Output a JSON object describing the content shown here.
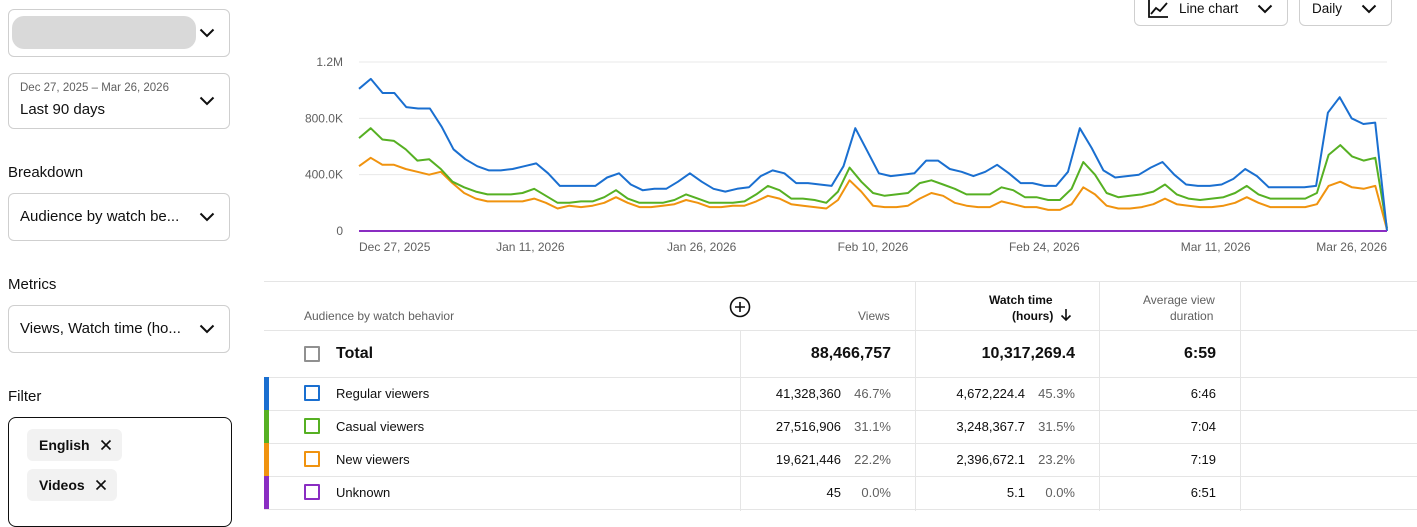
{
  "colors": {
    "regular": "#1a6fd0",
    "casual": "#56b023",
    "new": "#f0930f",
    "unknown": "#8a2dc2"
  },
  "left": {
    "channel_select": {
      "value": ""
    },
    "date_range": {
      "range": "Dec 27, 2025 – Mar 26, 2026",
      "label": "Last 90 days"
    },
    "breakdown": {
      "label": "Breakdown",
      "value": "Audience by watch be..."
    },
    "metrics": {
      "label": "Metrics",
      "value": "Views, Watch time (ho..."
    },
    "filter": {
      "label": "Filter",
      "chips": [
        "English",
        "Videos"
      ]
    }
  },
  "top_controls": {
    "chart_type": "Line chart",
    "interval": "Daily"
  },
  "chart_data": {
    "type": "line",
    "y_ticks": [
      "1.2M",
      "800.0K",
      "400.0K",
      "0"
    ],
    "ylim": [
      0,
      1200000
    ],
    "x_ticks": [
      "Dec 27, 2025",
      "Jan 11, 2026",
      "Jan 26, 2026",
      "Feb 10, 2026",
      "Feb 24, 2026",
      "Mar 11, 2026",
      "Mar 26, 2026"
    ],
    "grid": true,
    "series": [
      {
        "key": "regular",
        "values": [
          1010000,
          1080000,
          980000,
          980000,
          880000,
          870000,
          870000,
          740000,
          580000,
          510000,
          460000,
          430000,
          430000,
          440000,
          460000,
          480000,
          410000,
          320000,
          320000,
          320000,
          320000,
          380000,
          410000,
          330000,
          290000,
          300000,
          300000,
          350000,
          410000,
          350000,
          300000,
          280000,
          300000,
          310000,
          390000,
          430000,
          410000,
          340000,
          340000,
          330000,
          320000,
          460000,
          730000,
          570000,
          410000,
          390000,
          400000,
          410000,
          500000,
          500000,
          440000,
          420000,
          390000,
          420000,
          470000,
          410000,
          340000,
          340000,
          320000,
          320000,
          420000,
          730000,
          590000,
          430000,
          380000,
          390000,
          400000,
          450000,
          490000,
          400000,
          330000,
          320000,
          320000,
          330000,
          370000,
          440000,
          390000,
          310000,
          310000,
          310000,
          310000,
          320000,
          840000,
          950000,
          800000,
          760000,
          770000,
          0
        ]
      },
      {
        "key": "casual",
        "values": [
          660000,
          730000,
          650000,
          640000,
          580000,
          500000,
          510000,
          440000,
          350000,
          310000,
          280000,
          260000,
          260000,
          260000,
          270000,
          300000,
          250000,
          200000,
          200000,
          210000,
          210000,
          240000,
          290000,
          230000,
          200000,
          200000,
          200000,
          220000,
          260000,
          230000,
          200000,
          200000,
          200000,
          210000,
          260000,
          320000,
          290000,
          230000,
          230000,
          220000,
          200000,
          280000,
          450000,
          350000,
          270000,
          250000,
          260000,
          270000,
          340000,
          360000,
          330000,
          300000,
          260000,
          260000,
          260000,
          310000,
          290000,
          240000,
          240000,
          220000,
          220000,
          300000,
          490000,
          400000,
          270000,
          240000,
          250000,
          260000,
          280000,
          330000,
          260000,
          230000,
          220000,
          230000,
          240000,
          270000,
          320000,
          260000,
          230000,
          230000,
          230000,
          230000,
          270000,
          540000,
          610000,
          530000,
          500000,
          520000,
          20000
        ]
      },
      {
        "key": "new",
        "values": [
          460000,
          520000,
          470000,
          470000,
          440000,
          420000,
          400000,
          420000,
          340000,
          270000,
          230000,
          210000,
          210000,
          210000,
          210000,
          230000,
          200000,
          160000,
          180000,
          170000,
          180000,
          200000,
          240000,
          200000,
          170000,
          170000,
          180000,
          190000,
          220000,
          200000,
          170000,
          170000,
          180000,
          180000,
          210000,
          250000,
          230000,
          190000,
          180000,
          170000,
          160000,
          220000,
          360000,
          280000,
          180000,
          170000,
          170000,
          180000,
          230000,
          270000,
          250000,
          200000,
          180000,
          170000,
          170000,
          210000,
          190000,
          170000,
          170000,
          150000,
          150000,
          190000,
          310000,
          260000,
          180000,
          160000,
          160000,
          170000,
          190000,
          230000,
          190000,
          180000,
          170000,
          170000,
          180000,
          200000,
          240000,
          200000,
          170000,
          170000,
          170000,
          170000,
          190000,
          320000,
          350000,
          310000,
          300000,
          320000,
          10000
        ]
      },
      {
        "key": "unknown",
        "values": [
          0,
          0
        ]
      }
    ]
  },
  "table": {
    "headers": {
      "dimension": "Audience by watch behavior",
      "views": "Views",
      "watch_time_1": "Watch time",
      "watch_time_2": "(hours)",
      "avd_1": "Average view",
      "avd_2": "duration"
    },
    "total": {
      "label": "Total",
      "views": "88,466,757",
      "watch_time": "10,317,269.4",
      "avd": "6:59"
    },
    "rows": [
      {
        "label": "Regular viewers",
        "views": "41,328,360",
        "views_pct": "46.7%",
        "watch_time": "4,672,224.4",
        "watch_pct": "45.3%",
        "avd": "6:46"
      },
      {
        "label": "Casual viewers",
        "views": "27,516,906",
        "views_pct": "31.1%",
        "watch_time": "3,248,367.7",
        "watch_pct": "31.5%",
        "avd": "7:04"
      },
      {
        "label": "New viewers",
        "views": "19,621,446",
        "views_pct": "22.2%",
        "watch_time": "2,396,672.1",
        "watch_pct": "23.2%",
        "avd": "7:19"
      },
      {
        "label": "Unknown",
        "views": "45",
        "views_pct": "0.0%",
        "watch_time": "5.1",
        "watch_pct": "0.0%",
        "avd": "6:51"
      }
    ]
  }
}
